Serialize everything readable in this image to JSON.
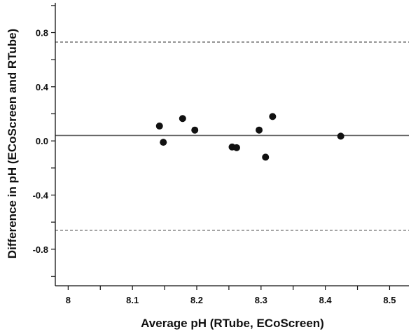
{
  "chart_data": {
    "type": "scatter",
    "title": "",
    "xlabel": "Average pH (RTube, ECoScreen)",
    "ylabel": "Difference in pH (ECoScreen and RTube)",
    "xlim": [
      7.98,
      8.53
    ],
    "ylim": [
      -1.07,
      1.02
    ],
    "x_ticks": [
      8.0,
      8.1,
      8.2,
      8.3,
      8.4,
      8.5
    ],
    "x_tick_labels": [
      "8",
      "8.1",
      "8.2",
      "8.3",
      "8.4",
      "8.5"
    ],
    "x_minor_ticks": [
      8.05,
      8.15,
      8.25,
      8.35,
      8.45
    ],
    "y_ticks": [
      0.8,
      0.4,
      0.0,
      -0.4,
      -0.8
    ],
    "y_tick_labels": [
      "0.8",
      "0.4",
      "0.0",
      "-0.4",
      "-0.8"
    ],
    "y_minor_ticks": [
      1.0,
      0.6,
      0.2,
      -0.2,
      -0.6,
      -1.0
    ],
    "grid": false,
    "legend": "none",
    "mean_line": 0.04,
    "upper_limit": 0.73,
    "lower_limit": -0.66,
    "points": [
      {
        "x": 8.142,
        "y": 0.11
      },
      {
        "x": 8.148,
        "y": -0.01
      },
      {
        "x": 8.178,
        "y": 0.165
      },
      {
        "x": 8.197,
        "y": 0.08
      },
      {
        "x": 8.255,
        "y": -0.045
      },
      {
        "x": 8.262,
        "y": -0.05
      },
      {
        "x": 8.297,
        "y": 0.08
      },
      {
        "x": 8.307,
        "y": -0.12
      },
      {
        "x": 8.318,
        "y": 0.18
      },
      {
        "x": 8.424,
        "y": 0.035
      }
    ],
    "colors": {
      "points": "#111111",
      "mean_line": "#666666",
      "limit_lines": "#666666",
      "axes": "#111111"
    }
  }
}
